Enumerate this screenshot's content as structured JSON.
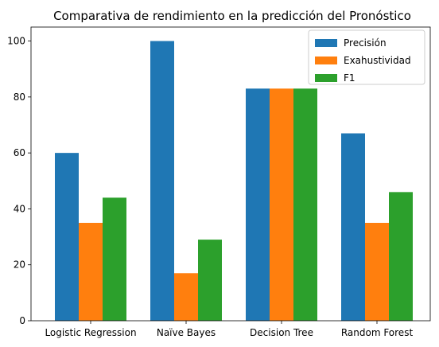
{
  "chart_data": {
    "type": "bar",
    "title": "Comparativa de rendimiento en la predicción del Pronóstico",
    "xlabel": "",
    "ylabel": "",
    "categories": [
      "Logistic Regression",
      "Naïve Bayes",
      "Decision Tree",
      "Random Forest"
    ],
    "series": [
      {
        "name": "Precisión",
        "color": "#1f77b4",
        "values": [
          60,
          100,
          83,
          67
        ]
      },
      {
        "name": "Exahustividad",
        "color": "#ff7f0e",
        "values": [
          35,
          17,
          83,
          35
        ]
      },
      {
        "name": "F1",
        "color": "#2ca02c",
        "values": [
          44,
          29,
          83,
          46
        ]
      }
    ],
    "ylim": [
      0,
      105
    ],
    "yticks": [
      0,
      20,
      40,
      60,
      80,
      100
    ],
    "grid": false,
    "legend": "top-right"
  }
}
